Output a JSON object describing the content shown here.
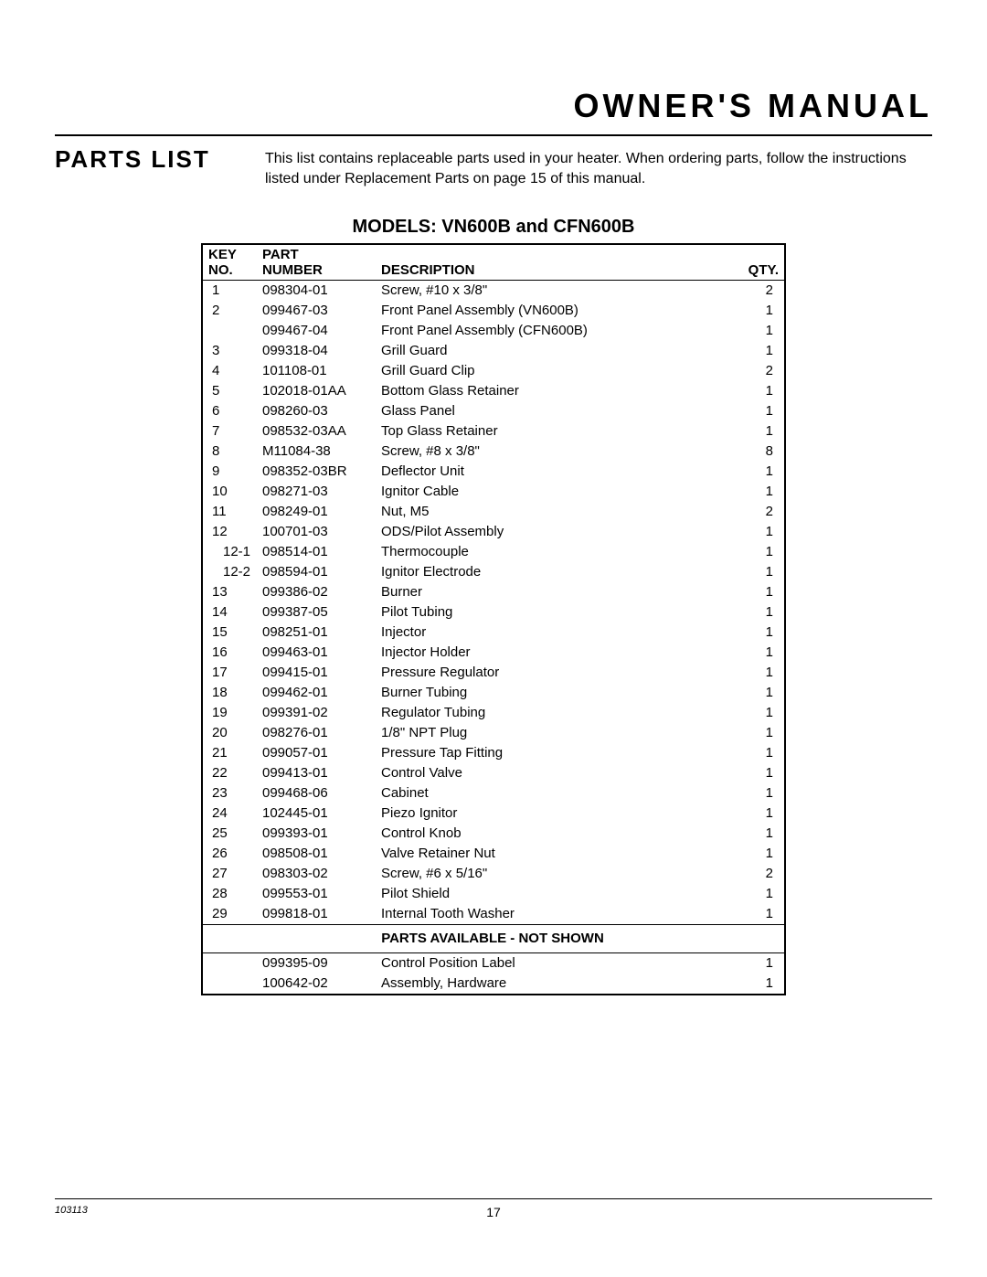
{
  "page_title": "OWNER'S MANUAL",
  "section_title": "PARTS LIST",
  "intro_line1": "This list contains replaceable parts used in your heater. When ordering parts, follow the instructions",
  "intro_line2_a": "listed under ",
  "intro_line2_b": "Replacement Parts",
  "intro_line2_c": " on page 15 of this manual.",
  "models_title": "MODELS: VN600B and CFN600B",
  "headers": {
    "key1": "KEY",
    "key2": "NO.",
    "part1": "PART",
    "part2": "NUMBER",
    "desc": "DESCRIPTION",
    "qty": "QTY."
  },
  "rows": [
    {
      "key": "1",
      "num": "098304-01",
      "desc": "Screw, #10 x 3/8\"",
      "qty": "2",
      "sub": false
    },
    {
      "key": "2",
      "num": "099467-03",
      "desc": "Front Panel Assembly (VN600B)",
      "qty": "1",
      "sub": false
    },
    {
      "key": "",
      "num": "099467-04",
      "desc": "Front Panel Assembly (CFN600B)",
      "qty": "1",
      "sub": false
    },
    {
      "key": "3",
      "num": "099318-04",
      "desc": "Grill Guard",
      "qty": "1",
      "sub": false
    },
    {
      "key": "4",
      "num": "101108-01",
      "desc": "Grill Guard Clip",
      "qty": "2",
      "sub": false
    },
    {
      "key": "5",
      "num": "102018-01AA",
      "desc": "Bottom Glass Retainer",
      "qty": "1",
      "sub": false
    },
    {
      "key": "6",
      "num": "098260-03",
      "desc": "Glass Panel",
      "qty": "1",
      "sub": false
    },
    {
      "key": "7",
      "num": "098532-03AA",
      "desc": "Top Glass Retainer",
      "qty": "1",
      "sub": false
    },
    {
      "key": "8",
      "num": "M11084-38",
      "desc": "Screw, #8 x 3/8\"",
      "qty": "8",
      "sub": false
    },
    {
      "key": "9",
      "num": "098352-03BR",
      "desc": "Deflector Unit",
      "qty": "1",
      "sub": false
    },
    {
      "key": "10",
      "num": "098271-03",
      "desc": "Ignitor Cable",
      "qty": "1",
      "sub": false
    },
    {
      "key": "11",
      "num": "098249-01",
      "desc": "Nut, M5",
      "qty": "2",
      "sub": false
    },
    {
      "key": "12",
      "num": "100701-03",
      "desc": "ODS/Pilot Assembly",
      "qty": "1",
      "sub": false
    },
    {
      "key": "12-1",
      "num": "098514-01",
      "desc": "Thermocouple",
      "qty": "1",
      "sub": true
    },
    {
      "key": "12-2",
      "num": "098594-01",
      "desc": "Ignitor Electrode",
      "qty": "1",
      "sub": true
    },
    {
      "key": "13",
      "num": "099386-02",
      "desc": "Burner",
      "qty": "1",
      "sub": false
    },
    {
      "key": "14",
      "num": "099387-05",
      "desc": "Pilot Tubing",
      "qty": "1",
      "sub": false
    },
    {
      "key": "15",
      "num": "098251-01",
      "desc": "Injector",
      "qty": "1",
      "sub": false
    },
    {
      "key": "16",
      "num": "099463-01",
      "desc": "Injector Holder",
      "qty": "1",
      "sub": false
    },
    {
      "key": "17",
      "num": "099415-01",
      "desc": "Pressure Regulator",
      "qty": "1",
      "sub": false
    },
    {
      "key": "18",
      "num": "099462-01",
      "desc": "Burner Tubing",
      "qty": "1",
      "sub": false
    },
    {
      "key": "19",
      "num": "099391-02",
      "desc": "Regulator Tubing",
      "qty": "1",
      "sub": false
    },
    {
      "key": "20",
      "num": "098276-01",
      "desc": "1/8\" NPT Plug",
      "qty": "1",
      "sub": false
    },
    {
      "key": "21",
      "num": "099057-01",
      "desc": "Pressure Tap Fitting",
      "qty": "1",
      "sub": false
    },
    {
      "key": "22",
      "num": "099413-01",
      "desc": "Control Valve",
      "qty": "1",
      "sub": false
    },
    {
      "key": "23",
      "num": "099468-06",
      "desc": "Cabinet",
      "qty": "1",
      "sub": false
    },
    {
      "key": "24",
      "num": "102445-01",
      "desc": "Piezo Ignitor",
      "qty": "1",
      "sub": false
    },
    {
      "key": "25",
      "num": "099393-01",
      "desc": "Control Knob",
      "qty": "1",
      "sub": false
    },
    {
      "key": "26",
      "num": "098508-01",
      "desc": "Valve Retainer Nut",
      "qty": "1",
      "sub": false
    },
    {
      "key": "27",
      "num": "098303-02",
      "desc": "Screw, #6 x 5/16\"",
      "qty": "2",
      "sub": false
    },
    {
      "key": "28",
      "num": "099553-01",
      "desc": "Pilot Shield",
      "qty": "1",
      "sub": false
    },
    {
      "key": "29",
      "num": "099818-01",
      "desc": "Internal Tooth Washer",
      "qty": "1",
      "sub": false
    }
  ],
  "section_label": "PARTS AVAILABLE - NOT SHOWN",
  "extra_rows": [
    {
      "key": "",
      "num": "099395-09",
      "desc": "Control Position Label",
      "qty": "1"
    },
    {
      "key": "",
      "num": "100642-02",
      "desc": "Assembly, Hardware",
      "qty": "1"
    }
  ],
  "doc_id": "103113",
  "page_number": "17"
}
